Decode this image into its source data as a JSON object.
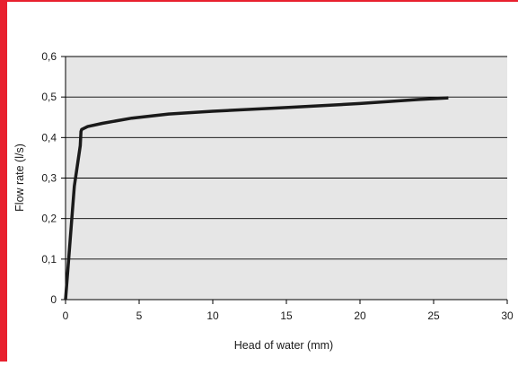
{
  "colors": {
    "accent": "#e8202e",
    "plot_background": "#e6e6e6",
    "gridline": "#000000",
    "line": "#1a1a1a",
    "text": "#1a1a1a"
  },
  "chart_data": {
    "type": "line",
    "title": "",
    "xlabel": "Head of water (mm)",
    "ylabel": "Flow rate (l/s)",
    "xlim": [
      0,
      30
    ],
    "ylim": [
      0,
      0.6
    ],
    "x_ticks": [
      0,
      5,
      10,
      15,
      20,
      25,
      30
    ],
    "x_tick_labels": [
      "0",
      "5",
      "10",
      "15",
      "20",
      "25",
      "30"
    ],
    "y_ticks": [
      0,
      0.1,
      0.2,
      0.3,
      0.4,
      0.5,
      0.6
    ],
    "y_tick_labels": [
      "0",
      "0,1",
      "0,2",
      "0,3",
      "0,4",
      "0,5",
      "0,6"
    ],
    "grid": "horizontal",
    "legend": "none",
    "series": [
      {
        "x": [
          0,
          0.3,
          0.6,
          1.0,
          1.05,
          1.1,
          1.5,
          2.5,
          4.5,
          7.0,
          10.0,
          15.0,
          20.0,
          24.0,
          26.0
        ],
        "y": [
          0,
          0.14,
          0.28,
          0.38,
          0.415,
          0.42,
          0.427,
          0.435,
          0.448,
          0.458,
          0.465,
          0.474,
          0.484,
          0.494,
          0.498
        ]
      }
    ]
  }
}
